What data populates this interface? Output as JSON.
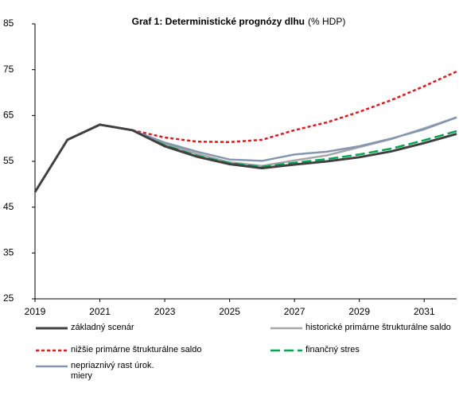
{
  "chart_data": {
    "type": "line",
    "title": "Graf 1: Deterministické prognózy dlhu",
    "subtitle": "(% HDP)",
    "x": [
      2019,
      2020,
      2021,
      2022,
      2023,
      2024,
      2025,
      2026,
      2027,
      2028,
      2029,
      2030,
      2031,
      2032
    ],
    "xlim": [
      2019,
      2032
    ],
    "xticks": [
      2019,
      2021,
      2023,
      2025,
      2027,
      2029,
      2031
    ],
    "ylim": [
      25,
      85
    ],
    "yticks": [
      25,
      35,
      45,
      55,
      65,
      75,
      85
    ],
    "grid": false,
    "series": [
      {
        "name": "základný scenár",
        "color": "#404040",
        "dash": "solid",
        "values": [
          48.3,
          59.7,
          63.0,
          61.8,
          58.3,
          56.0,
          54.4,
          53.5,
          54.3,
          55.0,
          55.9,
          57.2,
          59.0,
          61.0
        ]
      },
      {
        "name": "historické primárne štrukturálne saldo",
        "color": "#a6a6a6",
        "dash": "solid",
        "values": [
          null,
          null,
          null,
          61.8,
          58.8,
          56.6,
          54.8,
          54.0,
          55.2,
          56.3,
          58.1,
          59.9,
          62.2,
          64.6
        ]
      },
      {
        "name": "nižšie primárne štrukturálne saldo",
        "color": "#e8141b",
        "dash": "dotted",
        "values": [
          null,
          null,
          null,
          61.8,
          60.2,
          59.3,
          59.2,
          59.7,
          61.8,
          63.5,
          65.8,
          68.4,
          71.4,
          74.6
        ]
      },
      {
        "name": "finančný stres",
        "color": "#00a651",
        "dash": "dashed",
        "values": [
          null,
          null,
          null,
          61.8,
          58.5,
          56.2,
          54.6,
          53.8,
          54.7,
          55.5,
          56.5,
          57.8,
          59.6,
          61.6
        ]
      },
      {
        "name": "nepriaznivý rast úrok. miery",
        "color": "#8496b0",
        "dash": "solid",
        "values": [
          null,
          null,
          null,
          61.8,
          59.1,
          57.1,
          55.4,
          55.1,
          56.5,
          57.1,
          58.3,
          60.0,
          62.0,
          64.6
        ]
      }
    ]
  }
}
